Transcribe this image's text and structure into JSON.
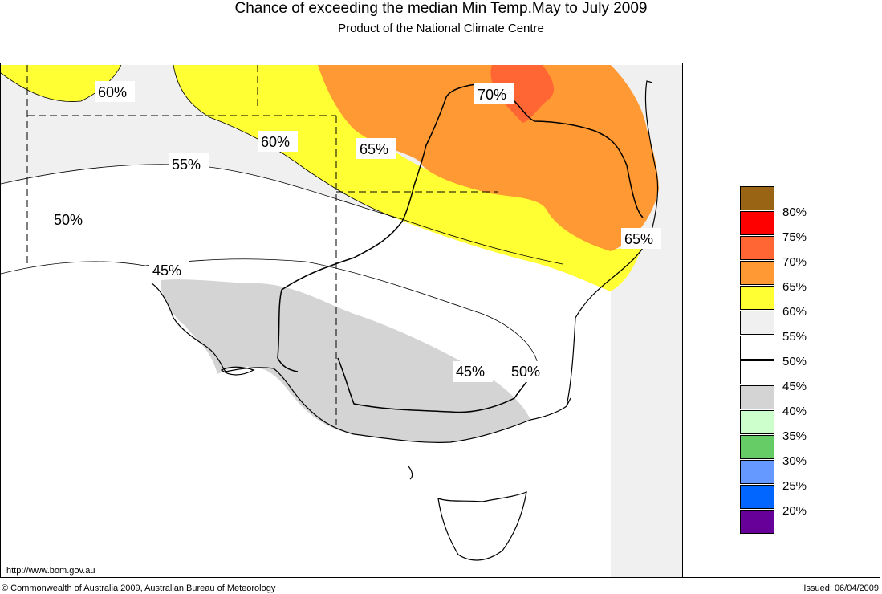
{
  "title": "Chance of exceeding the median Min Temp.May to July 2009",
  "subtitle": "Product of the National Climate Centre",
  "url": "http://www.bom.gov.au",
  "copyright": "© Commonwealth of Australia 2009, Australian Bureau of Meteorology",
  "issued": "Issued: 06/04/2009",
  "contour_labels": {
    "l60a": "60%",
    "l60b": "60%",
    "l55": "55%",
    "l50a": "50%",
    "l45a": "45%",
    "l65a": "65%",
    "l70": "70%",
    "l65b": "65%",
    "l45b": "45%",
    "l50b": "50%"
  },
  "legend": [
    {
      "label": "80%",
      "color": "#996515"
    },
    {
      "label": "75%",
      "color": "#ff0000"
    },
    {
      "label": "70%",
      "color": "#ff6633"
    },
    {
      "label": "65%",
      "color": "#ff9933"
    },
    {
      "label": "60%",
      "color": "#ffff33"
    },
    {
      "label": "55%",
      "color": "#f0f0f0"
    },
    {
      "label": "50%",
      "color": "#ffffff"
    },
    {
      "label": "45%",
      "color": "#ffffff"
    },
    {
      "label": "40%",
      "color": "#d4d4d4"
    },
    {
      "label": "35%",
      "color": "#ccffcc"
    },
    {
      "label": "30%",
      "color": "#66cc66"
    },
    {
      "label": "25%",
      "color": "#6699ff"
    },
    {
      "label": "20%",
      "color": "#0066ff"
    },
    {
      "label": "",
      "color": "#660099"
    }
  ]
}
